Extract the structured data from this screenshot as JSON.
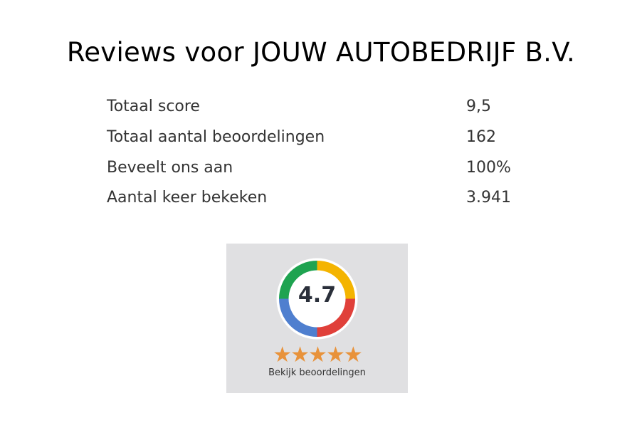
{
  "title": "Reviews voor JOUW AUTOBEDRIJF B.V.",
  "stats": [
    {
      "label": "Totaal score",
      "value": "9,5"
    },
    {
      "label": "Totaal aantal beoordelingen",
      "value": "162"
    },
    {
      "label": "Beveelt ons aan",
      "value": "100%"
    },
    {
      "label": "Aantal keer bekeken",
      "value": "3.941"
    }
  ],
  "widget": {
    "score": "4.7",
    "stars": 5,
    "link_label": "Bekijk beoordelingen",
    "colors": {
      "green": "#1ea350",
      "yellow": "#f4b400",
      "red": "#e0403a",
      "blue": "#4f7fcf",
      "star": "#e8923a"
    }
  }
}
